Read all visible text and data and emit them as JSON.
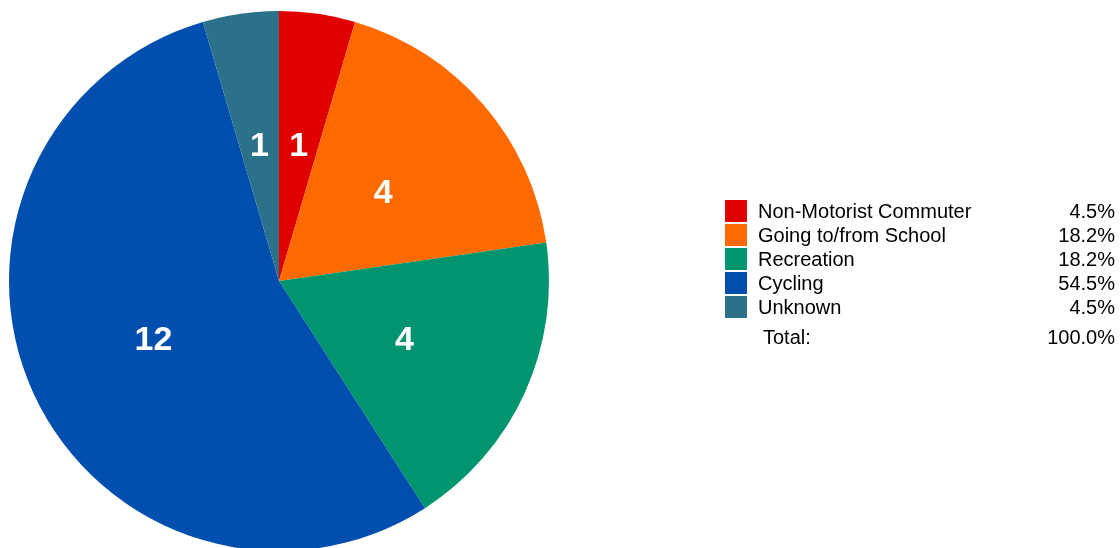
{
  "chart_data": {
    "type": "pie",
    "categories": [
      "Non-Motorist Commuter",
      "Going to/from School",
      "Recreation",
      "Cycling",
      "Unknown"
    ],
    "values": [
      1,
      4,
      4,
      12,
      1
    ],
    "colors": [
      "#e00000",
      "#ff6a00",
      "#00956e",
      "#004fae",
      "#2a7189"
    ],
    "data_labels": true,
    "legend": "right",
    "annotations": [
      "4.5%",
      "18.2%",
      "18.2%",
      "54.5%",
      "4.5%",
      "Total:",
      "100.0%"
    ]
  }
}
